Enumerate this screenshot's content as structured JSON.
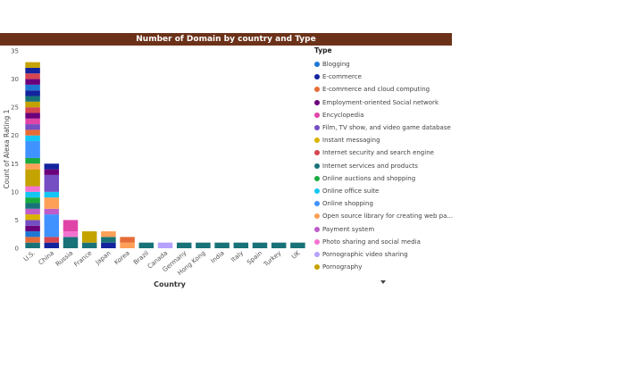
{
  "chart_data": {
    "type": "bar",
    "stacked": true,
    "title": "Number of Domain by country and Type",
    "xlabel": "Country",
    "ylabel": "Count of Alexa Rating 1",
    "ylim": [
      0,
      35
    ],
    "yticks": [
      0,
      5,
      10,
      15,
      20,
      25,
      30,
      35
    ],
    "grid": false,
    "legend_position": "right",
    "legend_title": "Type",
    "categories": [
      "U.S.",
      "China",
      "Russia",
      "France",
      "Japan",
      "Korea",
      "Brazil",
      "Canada",
      "Germany",
      "Hong Kong",
      "India",
      "Italy",
      "Spain",
      "Turkey",
      "UK"
    ],
    "legend": [
      {
        "name": "Blogging",
        "color": "#1f77d4"
      },
      {
        "name": "E-commerce",
        "color": "#12239e"
      },
      {
        "name": "E-commerce and cloud computing",
        "color": "#e66c37"
      },
      {
        "name": "Employment-oriented Social network",
        "color": "#6b007b"
      },
      {
        "name": "Encyclopedia",
        "color": "#e044a7"
      },
      {
        "name": "Film, TV show, and video game database",
        "color": "#744ec2"
      },
      {
        "name": "Instant messaging",
        "color": "#d9b300"
      },
      {
        "name": "Internet security and search engine",
        "color": "#d64550"
      },
      {
        "name": "Internet services and products",
        "color": "#197278"
      },
      {
        "name": "Online auctions and shopping",
        "color": "#1aab40"
      },
      {
        "name": "Online office suite",
        "color": "#15c6f4"
      },
      {
        "name": "Online shopping",
        "color": "#4092ff"
      },
      {
        "name": "Open source library for creating web pa...",
        "color": "#ffa058"
      },
      {
        "name": "Payment system",
        "color": "#be5dc9"
      },
      {
        "name": "Photo sharing and social media",
        "color": "#f472d0"
      },
      {
        "name": "Pornographic video sharing",
        "color": "#b5a1ff"
      },
      {
        "name": "Pornography",
        "color": "#c4a200"
      }
    ],
    "stacks": [
      {
        "category": "U.S.",
        "segments": [
          {
            "type": "Internet services and products",
            "value": 1
          },
          {
            "type": "E-commerce and cloud computing",
            "value": 1
          },
          {
            "type": "Blogging",
            "value": 1
          },
          {
            "type": "Employment-oriented Social network",
            "value": 1
          },
          {
            "type": "Film, TV show, and video game database",
            "value": 1
          },
          {
            "type": "Instant messaging",
            "value": 1
          },
          {
            "type": "Payment system",
            "value": 1
          },
          {
            "type": "Internet services and products",
            "value": 1
          },
          {
            "type": "Online auctions and shopping",
            "value": 1
          },
          {
            "type": "Online office suite",
            "value": 1
          },
          {
            "type": "Photo sharing and social media",
            "value": 1
          },
          {
            "type": "Pornography",
            "value": 3
          },
          {
            "type": "Open source library for creating web pa...",
            "value": 1
          },
          {
            "type": "Online auctions and shopping",
            "value": 1
          },
          {
            "type": "Online shopping",
            "value": 3
          },
          {
            "type": "Online office suite",
            "value": 1
          },
          {
            "type": "E-commerce and cloud computing",
            "value": 1
          },
          {
            "type": "Film, TV show, and video game database",
            "value": 1
          },
          {
            "type": "Encyclopedia",
            "value": 1
          },
          {
            "type": "Employment-oriented Social network",
            "value": 1
          },
          {
            "type": "Internet security and search engine",
            "value": 1
          },
          {
            "type": "Pornography",
            "value": 1
          },
          {
            "type": "Internet services and products",
            "value": 1
          },
          {
            "type": "E-commerce",
            "value": 1
          },
          {
            "type": "Blogging",
            "value": 1
          },
          {
            "type": "Employment-oriented Social network",
            "value": 1
          },
          {
            "type": "Internet security and search engine",
            "value": 1
          },
          {
            "type": "E-commerce",
            "value": 1
          },
          {
            "type": "Pornography",
            "value": 1
          }
        ]
      },
      {
        "category": "China",
        "segments": [
          {
            "type": "E-commerce",
            "value": 1
          },
          {
            "type": "Internet security and search engine",
            "value": 1
          },
          {
            "type": "Online shopping",
            "value": 4
          },
          {
            "type": "Payment system",
            "value": 1
          },
          {
            "type": "Open source library for creating web pa...",
            "value": 2
          },
          {
            "type": "Online office suite",
            "value": 1
          },
          {
            "type": "Film, TV show, and video game database",
            "value": 3
          },
          {
            "type": "Employment-oriented Social network",
            "value": 1
          },
          {
            "type": "E-commerce",
            "value": 1
          }
        ]
      },
      {
        "category": "Russia",
        "segments": [
          {
            "type": "Internet services and products",
            "value": 2
          },
          {
            "type": "Photo sharing and social media",
            "value": 1
          },
          {
            "type": "Encyclopedia",
            "value": 2
          }
        ]
      },
      {
        "category": "France",
        "segments": [
          {
            "type": "Internet services and products",
            "value": 1
          },
          {
            "type": "Pornography",
            "value": 2
          }
        ]
      },
      {
        "category": "Japan",
        "segments": [
          {
            "type": "E-commerce",
            "value": 1
          },
          {
            "type": "Internet services and products",
            "value": 1
          },
          {
            "type": "Open source library for creating web pa...",
            "value": 1
          }
        ]
      },
      {
        "category": "Korea",
        "segments": [
          {
            "type": "Open source library for creating web pa...",
            "value": 1
          },
          {
            "type": "E-commerce and cloud computing",
            "value": 1
          }
        ]
      },
      {
        "category": "Brazil",
        "segments": [
          {
            "type": "Internet services and products",
            "value": 1
          }
        ]
      },
      {
        "category": "Canada",
        "segments": [
          {
            "type": "Pornographic video sharing",
            "value": 1
          }
        ]
      },
      {
        "category": "Germany",
        "segments": [
          {
            "type": "Internet services and products",
            "value": 1
          }
        ]
      },
      {
        "category": "Hong Kong",
        "segments": [
          {
            "type": "Internet services and products",
            "value": 1
          }
        ]
      },
      {
        "category": "India",
        "segments": [
          {
            "type": "Internet services and products",
            "value": 1
          }
        ]
      },
      {
        "category": "Italy",
        "segments": [
          {
            "type": "Internet services and products",
            "value": 1
          }
        ]
      },
      {
        "category": "Spain",
        "segments": [
          {
            "type": "Internet services and products",
            "value": 1
          }
        ]
      },
      {
        "category": "Turkey",
        "segments": [
          {
            "type": "Internet services and products",
            "value": 1
          }
        ]
      },
      {
        "category": "UK",
        "segments": [
          {
            "type": "Internet services and products",
            "value": 1
          }
        ]
      }
    ]
  }
}
